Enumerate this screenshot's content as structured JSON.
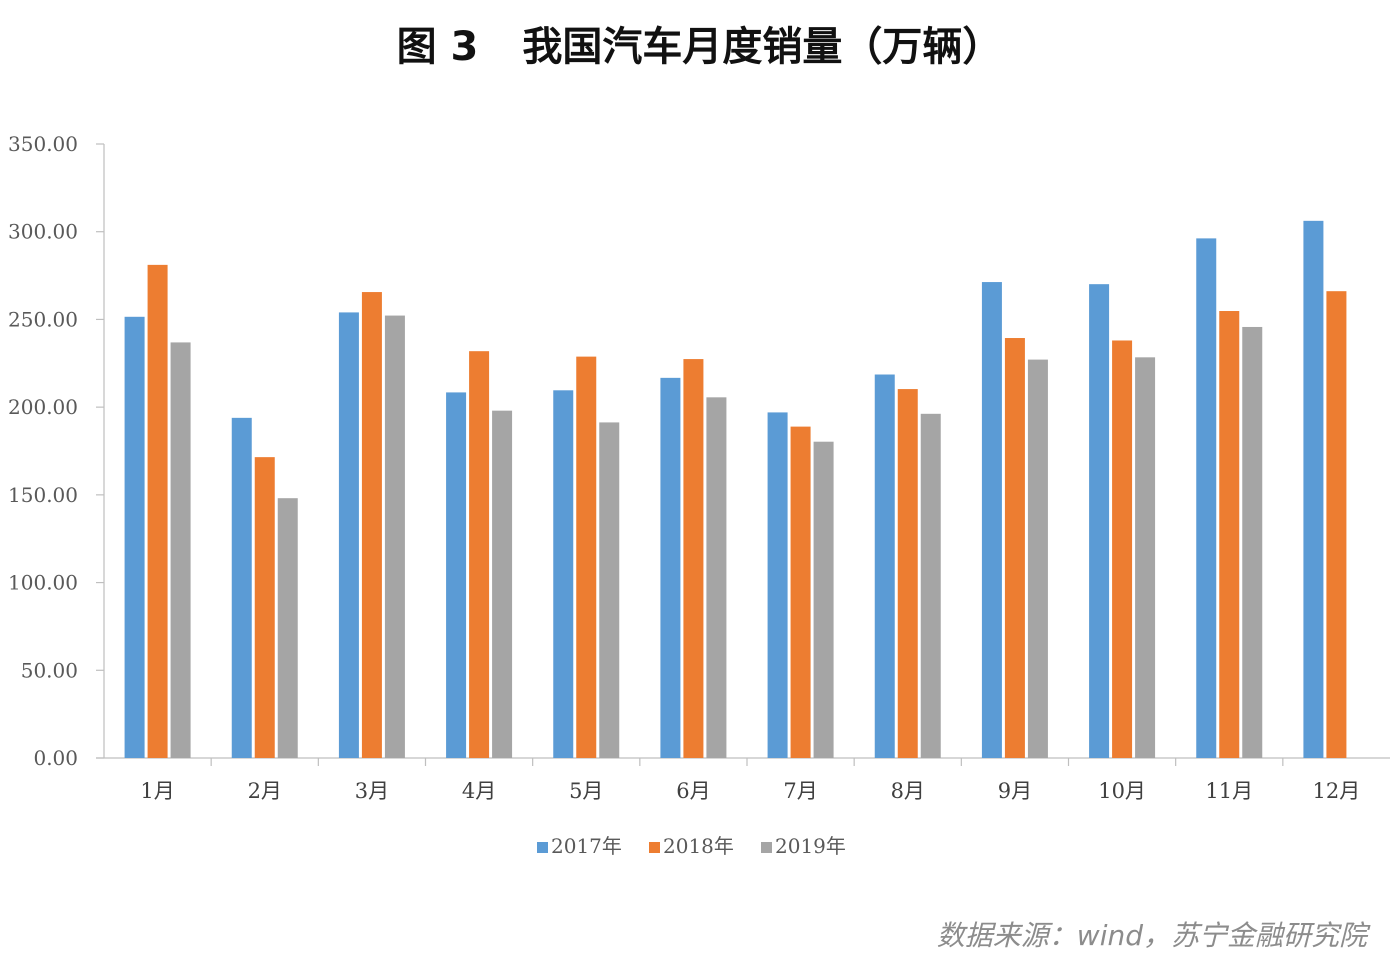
{
  "figure_label": "图 3",
  "title": "我国汽车月度销量（万辆）",
  "source": "数据来源：wind，苏宁金融研究院",
  "chart_data": {
    "type": "bar",
    "title": "我国汽车月度销量（万辆）",
    "xlabel": "",
    "ylabel": "",
    "ylim": [
      0,
      350
    ],
    "yticks": [
      "0.00",
      "50.00",
      "100.00",
      "150.00",
      "200.00",
      "250.00",
      "300.00",
      "350.00"
    ],
    "grid": false,
    "legend_position": "bottom",
    "categories": [
      "1月",
      "2月",
      "3月",
      "4月",
      "5月",
      "6月",
      "7月",
      "8月",
      "9月",
      "10月",
      "11月",
      "12月"
    ],
    "series": [
      {
        "name": "2017年",
        "color": "#5b9bd5",
        "values": [
          251.5,
          193.9,
          254.0,
          208.4,
          209.6,
          216.7,
          197.0,
          218.6,
          271.3,
          270.1,
          296.2,
          306.2
        ]
      },
      {
        "name": "2018年",
        "color": "#ed7d31",
        "values": [
          281.1,
          171.5,
          265.6,
          231.9,
          228.8,
          227.4,
          188.9,
          210.3,
          239.4,
          238.0,
          254.8,
          266.1
        ]
      },
      {
        "name": "2019年",
        "color": "#a5a5a5",
        "values": [
          236.9,
          148.1,
          252.2,
          198.0,
          191.3,
          205.6,
          180.3,
          196.2,
          227.1,
          228.4,
          245.7,
          null
        ]
      }
    ]
  }
}
